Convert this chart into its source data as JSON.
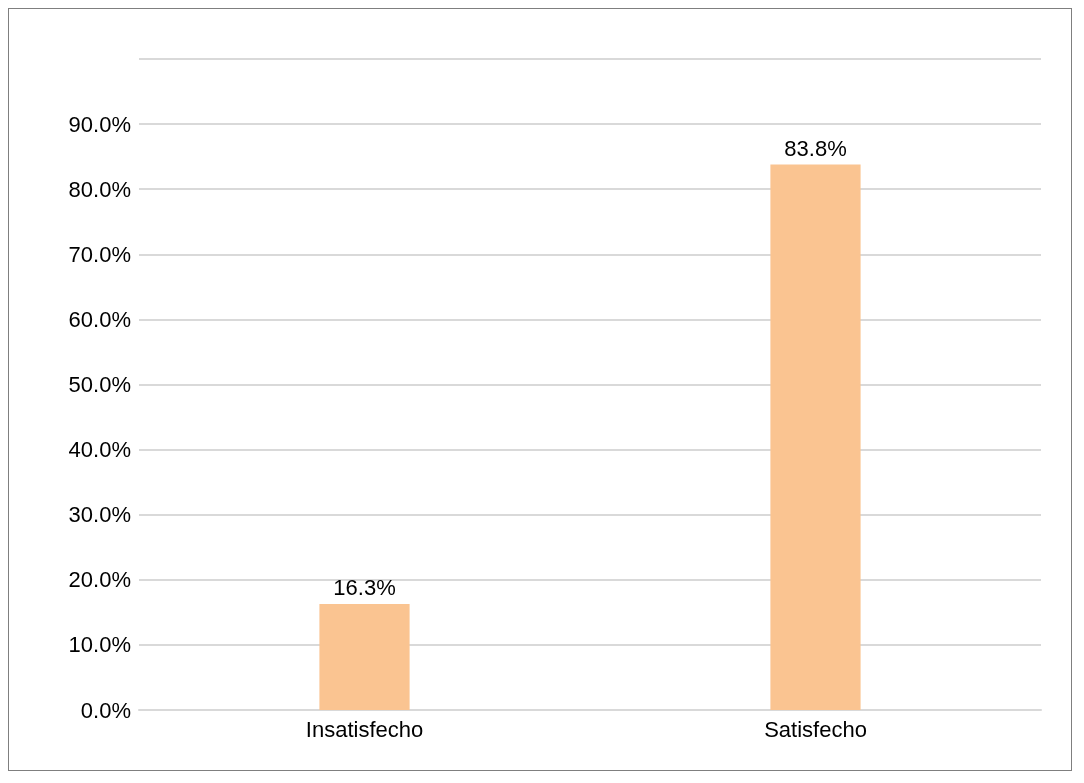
{
  "chart_data": {
    "type": "bar",
    "categories": [
      "Insatisfecho",
      "Satisfecho"
    ],
    "values": [
      16.3,
      83.8
    ],
    "value_labels": [
      "16.3%",
      "83.8%"
    ],
    "color": "#fac491",
    "ylim": [
      0,
      100
    ],
    "yticks": [
      {
        "value": 0,
        "label": "0.0%"
      },
      {
        "value": 10,
        "label": "10.0%"
      },
      {
        "value": 20,
        "label": "20.0%"
      },
      {
        "value": 30,
        "label": "30.0%"
      },
      {
        "value": 40,
        "label": "40.0%"
      },
      {
        "value": 50,
        "label": "50.0%"
      },
      {
        "value": 60,
        "label": "60.0%"
      },
      {
        "value": 70,
        "label": "70.0%"
      },
      {
        "value": 80,
        "label": "80.0%"
      },
      {
        "value": 90,
        "label": "90.0%"
      },
      {
        "value": 100,
        "label": null
      }
    ],
    "grid": "y"
  }
}
